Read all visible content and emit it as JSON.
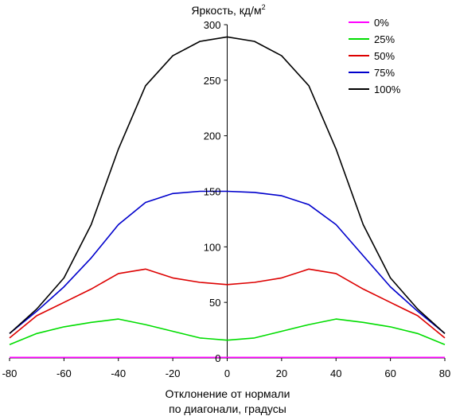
{
  "chart_data": {
    "type": "line",
    "ylabel": "Яркость, кд/м",
    "ylabel_superscript": "2",
    "xlabel_lines": [
      "Отклонение от нормали",
      "по диагонали, градусы"
    ],
    "xlim": [
      -80,
      80
    ],
    "ylim": [
      0,
      300
    ],
    "x_ticks": [
      -80,
      -60,
      -40,
      -20,
      0,
      20,
      40,
      60,
      80
    ],
    "y_ticks": [
      0,
      50,
      100,
      150,
      200,
      250,
      300
    ],
    "grid": false,
    "legend_position": "top-right",
    "x": [
      -80,
      -70,
      -60,
      -50,
      -40,
      -30,
      -20,
      -10,
      0,
      10,
      20,
      30,
      40,
      50,
      60,
      70,
      80
    ],
    "series": [
      {
        "name": "0%",
        "color": "#ff00ff",
        "values": [
          0.5,
          0.5,
          0.5,
          0.5,
          0.5,
          0.5,
          0.5,
          0.5,
          0.5,
          0.5,
          0.5,
          0.5,
          0.5,
          0.5,
          0.5,
          0.5,
          0.5
        ]
      },
      {
        "name": "25%",
        "color": "#00dd00",
        "values": [
          12,
          22,
          28,
          32,
          35,
          30,
          24,
          18,
          16,
          18,
          24,
          30,
          35,
          32,
          28,
          22,
          12
        ]
      },
      {
        "name": "50%",
        "color": "#dd0000",
        "values": [
          18,
          38,
          50,
          62,
          76,
          80,
          72,
          68,
          66,
          68,
          72,
          80,
          76,
          62,
          50,
          38,
          18
        ]
      },
      {
        "name": "75%",
        "color": "#0000cc",
        "values": [
          22,
          42,
          64,
          90,
          120,
          140,
          148,
          150,
          150,
          149,
          146,
          138,
          120,
          92,
          64,
          42,
          22
        ]
      },
      {
        "name": "100%",
        "color": "#000000",
        "values": [
          22,
          44,
          72,
          120,
          188,
          245,
          272,
          285,
          289,
          285,
          272,
          245,
          188,
          120,
          72,
          44,
          22
        ]
      }
    ]
  }
}
